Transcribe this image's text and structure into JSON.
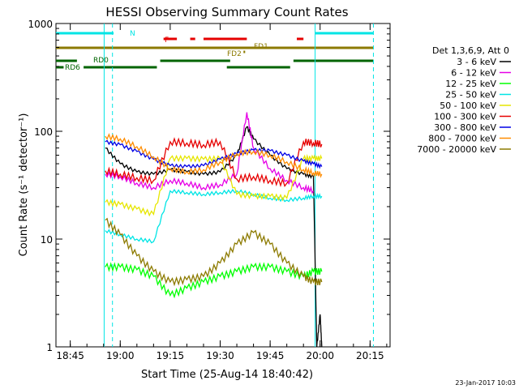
{
  "chart_data": {
    "type": "line",
    "title": "HESSI Observing Summary Count Rates",
    "xlabel": "Start Time (25-Aug-14 18:40:42)",
    "ylabel": "Count Rate (s⁻¹ detector⁻¹)",
    "y_scale": "log",
    "ylim": [
      1,
      1000
    ],
    "xlim": [
      "18:40:42",
      "20:21:00"
    ],
    "x_ticks": [
      "18:45",
      "19:00",
      "19:15",
      "19:30",
      "19:45",
      "20:00",
      "20:15"
    ],
    "y_ticks": [
      "1",
      "10",
      "100",
      "1000"
    ],
    "grid": false,
    "legend_position": "right",
    "legend_header": "Det 1,3,6,9, Att 0",
    "footer_date": "23-Jan-2017 10:03",
    "colors": {
      "axes": "#000000",
      "background": "#ffffff",
      "cyan_vlines": "#00e5e5",
      "flag_cyan": "#00e5e5",
      "flag_red": "#e60000",
      "flag_olive": "#8c7a00",
      "flag_green": "#006400"
    },
    "vertical_lines": [
      {
        "time": "18:55:10",
        "style": "solid"
      },
      {
        "time": "18:57:40",
        "style": "dashed"
      },
      {
        "time": "19:58:30",
        "style": "solid"
      },
      {
        "time": "20:16:00",
        "style": "dashed"
      }
    ],
    "flags": [
      {
        "label": "N",
        "color": "#00e5e5",
        "segments": [
          [
            "18:40:42",
            "18:58:00"
          ],
          [
            "19:58:30",
            "20:16:00"
          ]
        ]
      },
      {
        "label": "F",
        "color": "#e60000",
        "segments": [
          [
            "19:13:00",
            "19:17:00"
          ],
          [
            "19:21:00",
            "19:22:30"
          ],
          [
            "19:25:00",
            "19:38:00"
          ],
          [
            "19:53:00",
            "19:55:00"
          ]
        ]
      },
      {
        "label": "FD1",
        "color": "#8c7a00",
        "segments": [
          [
            "18:40:42",
            "20:16:00"
          ]
        ]
      },
      {
        "label": "FD2",
        "color": "#8c7a00",
        "segments": [
          [
            "19:37:00",
            "19:37:30"
          ]
        ]
      },
      {
        "label": "RD0",
        "color": "#006400",
        "segments": [
          [
            "18:40:42",
            "18:47:00"
          ],
          [
            "19:12:00",
            "19:33:00"
          ],
          [
            "19:52:00",
            "20:16:00"
          ]
        ]
      },
      {
        "label": "RD6",
        "color": "#006400",
        "segments": [
          [
            "18:40:42",
            "18:43:00"
          ],
          [
            "18:49:00",
            "19:11:00"
          ],
          [
            "19:32:00",
            "19:51:00"
          ]
        ]
      }
    ],
    "series": [
      {
        "name": "3 - 6 keV",
        "color": "#000000",
        "x": [
          "18:55:30",
          "19:00",
          "19:05",
          "19:10",
          "19:15",
          "19:20",
          "19:25",
          "19:30",
          "19:35",
          "19:38",
          "19:40",
          "19:45",
          "19:50",
          "19:55",
          "19:58",
          "19:59",
          "20:00",
          "20:00:30"
        ],
        "y": [
          70,
          50,
          42,
          40,
          44,
          42,
          40,
          42,
          60,
          110,
          85,
          60,
          45,
          40,
          38,
          1,
          2,
          1
        ]
      },
      {
        "name": "6 - 12 keV",
        "color": "#e600e6",
        "x": [
          "18:55:30",
          "19:00",
          "19:05",
          "19:10",
          "19:15",
          "19:20",
          "19:25",
          "19:30",
          "19:35",
          "19:38",
          "19:40",
          "19:45",
          "19:50",
          "19:55",
          "19:58"
        ],
        "y": [
          40,
          38,
          33,
          30,
          35,
          33,
          30,
          32,
          40,
          150,
          70,
          45,
          35,
          30,
          28
        ]
      },
      {
        "name": "12 - 25 keV",
        "color": "#00ff00",
        "x": [
          "18:55:30",
          "19:00",
          "19:05",
          "19:10",
          "19:15",
          "19:20",
          "19:25",
          "19:30",
          "19:35",
          "19:40",
          "19:45",
          "19:50",
          "19:55",
          "19:58",
          "20:00:30"
        ],
        "y": [
          5.5,
          5.5,
          5.2,
          4.5,
          3,
          3.5,
          4,
          4.5,
          5,
          5.5,
          5.5,
          5,
          4.5,
          5,
          5
        ]
      },
      {
        "name": "25 - 50 keV",
        "color": "#00e5e5",
        "x": [
          "18:55:30",
          "19:00",
          "19:05",
          "19:10",
          "19:15",
          "19:20",
          "19:25",
          "19:30",
          "19:35",
          "19:40",
          "19:45",
          "19:50",
          "19:55",
          "19:58",
          "20:00:30"
        ],
        "y": [
          12,
          11,
          10,
          9.5,
          28,
          27,
          26,
          27,
          28,
          26,
          24,
          23,
          24,
          25,
          25
        ]
      },
      {
        "name": "50 - 100 keV",
        "color": "#e6e600",
        "x": [
          "18:55:30",
          "19:00",
          "19:05",
          "19:10",
          "19:15",
          "19:20",
          "19:25",
          "19:30",
          "19:35",
          "19:40",
          "19:45",
          "19:50",
          "19:55",
          "19:58",
          "20:00:30"
        ],
        "y": [
          22,
          21,
          19,
          17,
          56,
          56,
          55,
          56,
          26,
          25,
          25,
          24,
          56,
          56,
          56
        ]
      },
      {
        "name": "100 - 300 keV",
        "color": "#e60000",
        "x": [
          "18:55:30",
          "19:00",
          "19:05",
          "19:10",
          "19:15",
          "19:20",
          "19:25",
          "19:30",
          "19:35",
          "19:40",
          "19:45",
          "19:50",
          "19:55",
          "19:58",
          "20:00:30"
        ],
        "y": [
          43,
          40,
          37,
          35,
          80,
          78,
          75,
          80,
          36,
          38,
          35,
          33,
          80,
          78,
          76
        ]
      },
      {
        "name": "300 - 800 keV",
        "color": "#0000e6",
        "x": [
          "18:55:30",
          "19:00",
          "19:05",
          "19:10",
          "19:15",
          "19:20",
          "19:25",
          "19:30",
          "19:35",
          "19:40",
          "19:45",
          "19:50",
          "19:55",
          "19:58",
          "20:00:30"
        ],
        "y": [
          80,
          75,
          65,
          55,
          48,
          47,
          48,
          55,
          62,
          67,
          66,
          60,
          53,
          50,
          47
        ]
      },
      {
        "name": "800 - 7000 keV",
        "color": "#ff8c00",
        "x": [
          "18:55:30",
          "19:00",
          "19:05",
          "19:10",
          "19:15",
          "19:20",
          "19:25",
          "19:30",
          "19:35",
          "19:40",
          "19:45",
          "19:50",
          "19:55",
          "19:58",
          "20:00:30"
        ],
        "y": [
          90,
          85,
          72,
          58,
          45,
          42,
          44,
          52,
          62,
          65,
          60,
          52,
          44,
          41,
          40
        ]
      },
      {
        "name": "7000 - 20000 keV",
        "color": "#8c7a00",
        "x": [
          "18:55:30",
          "19:00",
          "19:05",
          "19:10",
          "19:15",
          "19:20",
          "19:25",
          "19:30",
          "19:35",
          "19:40",
          "19:45",
          "19:50",
          "19:55",
          "19:58",
          "20:00:30"
        ],
        "y": [
          15,
          11,
          7,
          5,
          4,
          4.2,
          4.5,
          6,
          9,
          11.5,
          9,
          6,
          4.5,
          4,
          4
        ]
      }
    ]
  }
}
